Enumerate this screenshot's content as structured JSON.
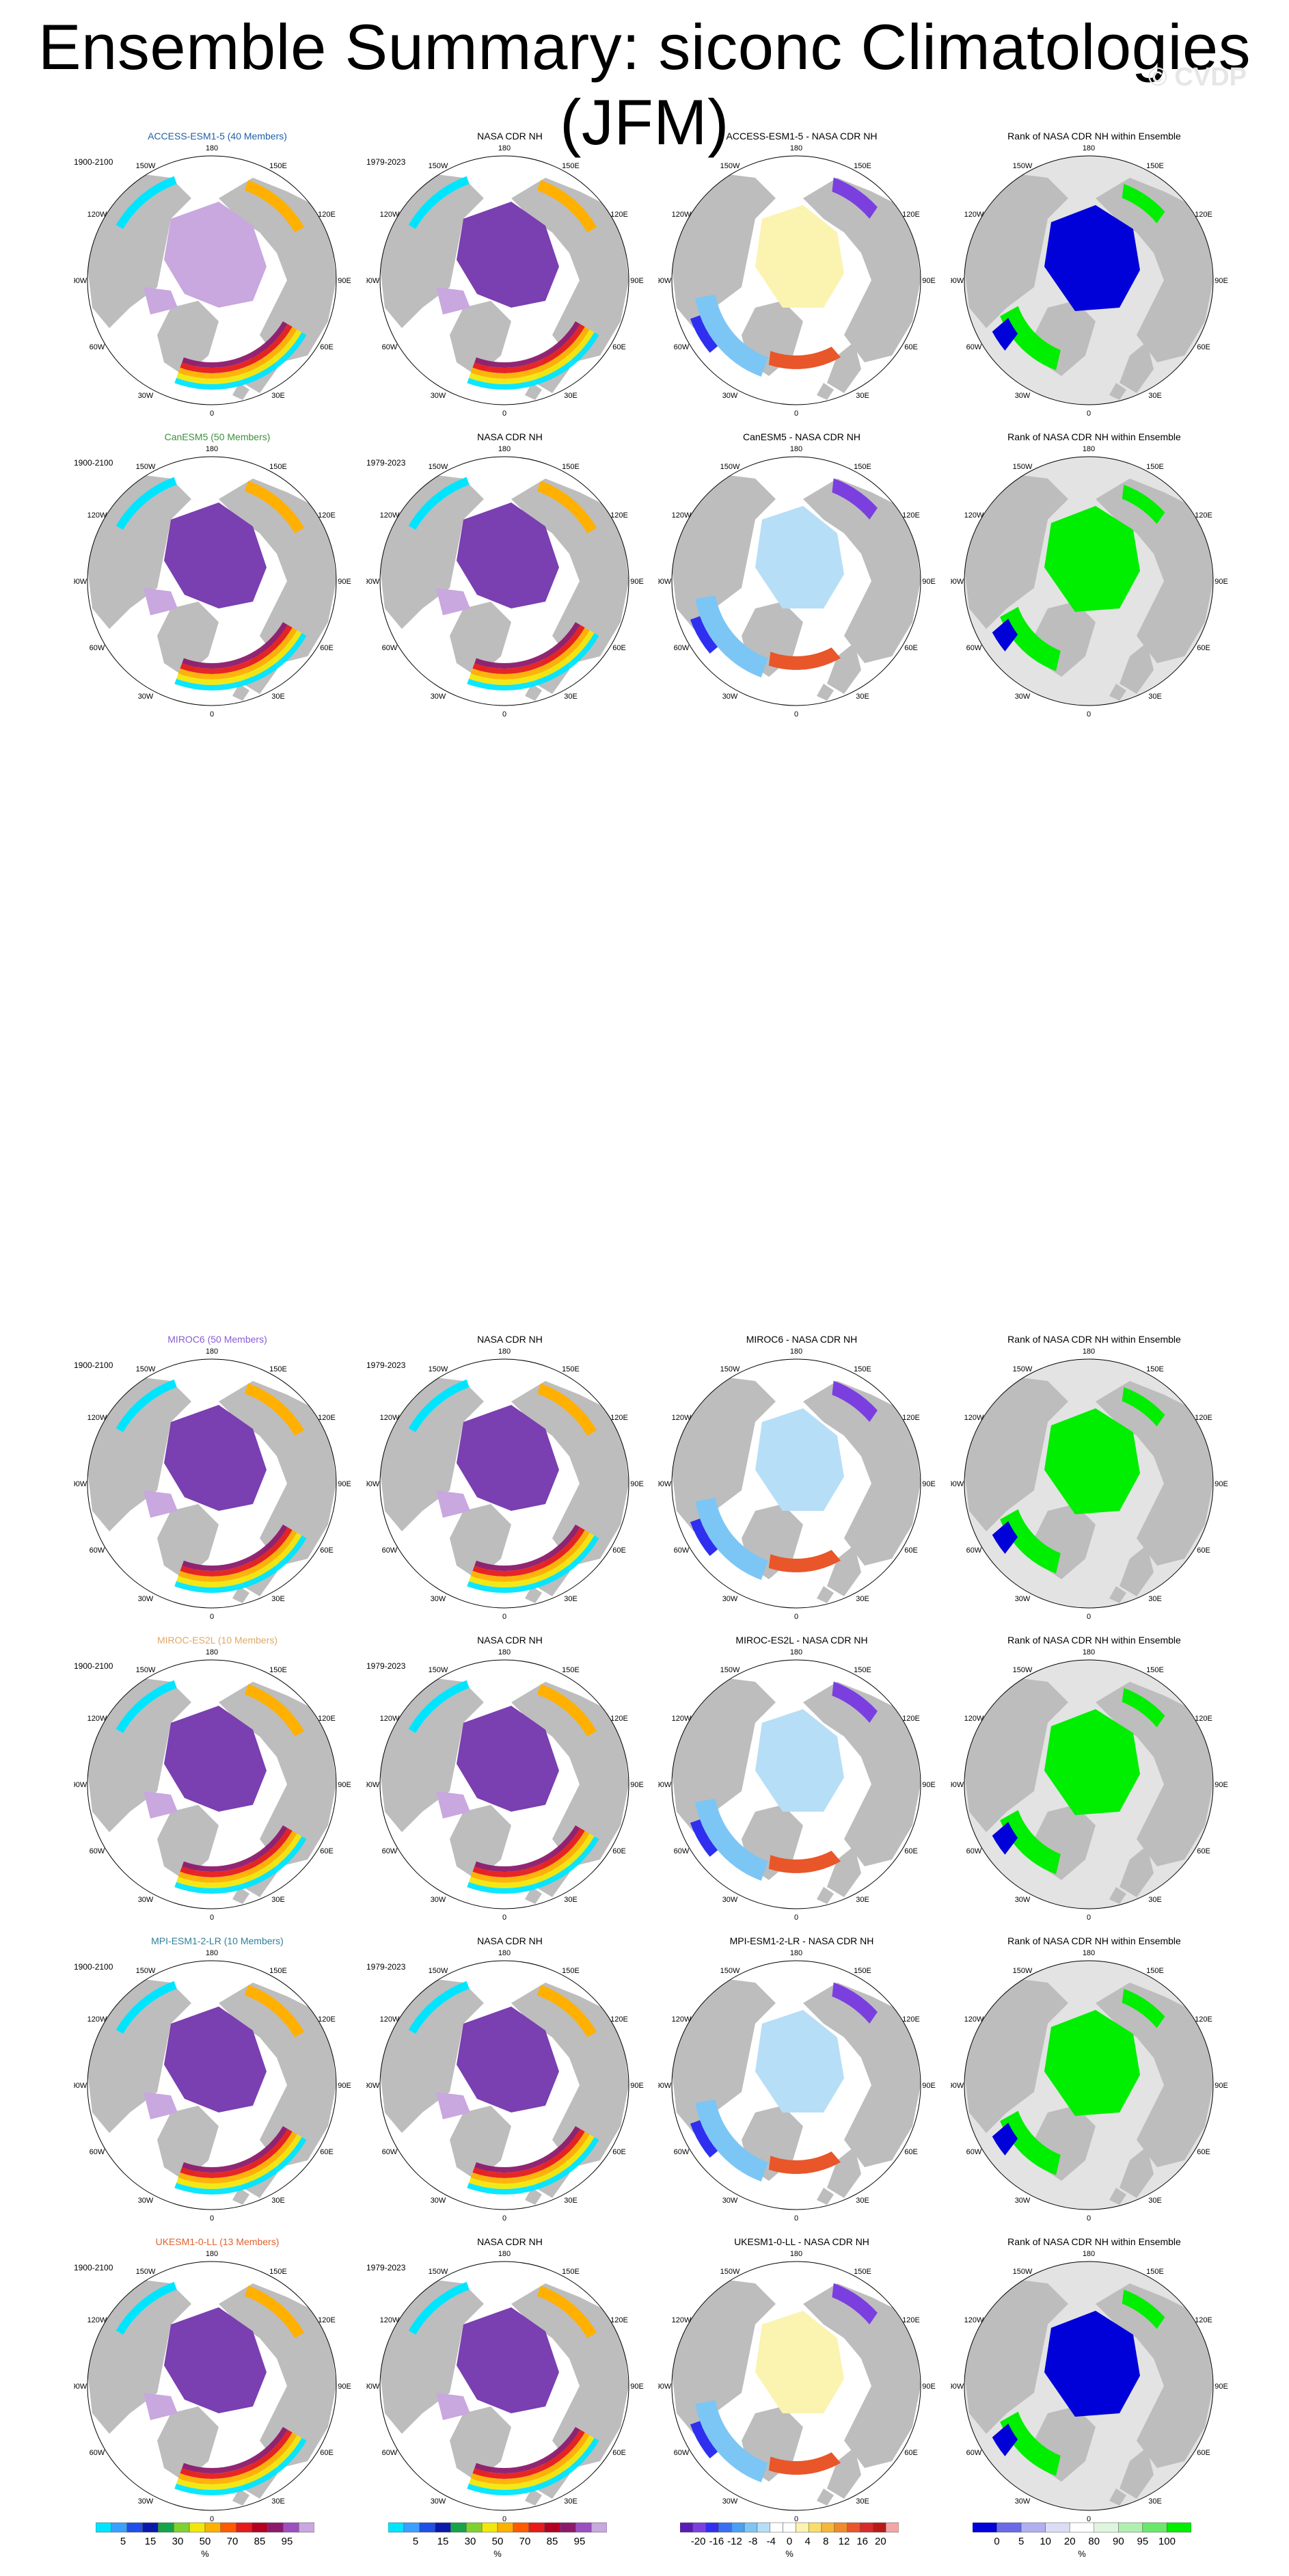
{
  "title": "Ensemble Summary: siconc Climatologies (JFM)",
  "watermark": "© CVDP",
  "colors": {
    "land": "#bdbdbd",
    "ice_purple": "#7a3fb0",
    "ice_lavender": "#c9a7df",
    "rank_green": "#00ee00",
    "rank_blue": "#0000d8",
    "rank_grey": "#e3e3e3"
  },
  "lon_labels": [
    "180",
    "150E",
    "120E",
    "90E",
    "60E",
    "30E",
    "0",
    "30W",
    "60W",
    "90W",
    "120W",
    "150W"
  ],
  "chart_data": [
    {
      "type": "heatmap",
      "row": 0,
      "col": 0,
      "kind": "model",
      "title": "ACCESS-ESM1-5 (40 Members)",
      "title_color": "#1f5fa8",
      "years": "1900-2100"
    },
    {
      "type": "heatmap",
      "row": 0,
      "col": 1,
      "kind": "obs",
      "title": "NASA CDR NH",
      "title_color": "#000000",
      "years": "1979-2023"
    },
    {
      "type": "heatmap",
      "row": 0,
      "col": 2,
      "kind": "diff",
      "title": "ACCESS-ESM1-5 - NASA CDR NH",
      "title_color": "#000000",
      "years": ""
    },
    {
      "type": "heatmap",
      "row": 0,
      "col": 3,
      "kind": "rank",
      "title": "Rank of NASA CDR NH within Ensemble",
      "title_color": "#000000",
      "years": ""
    },
    {
      "type": "heatmap",
      "row": 1,
      "col": 0,
      "kind": "model",
      "title": "CanESM5 (50 Members)",
      "title_color": "#3d8f3d",
      "years": "1900-2100"
    },
    {
      "type": "heatmap",
      "row": 1,
      "col": 1,
      "kind": "obs",
      "title": "NASA CDR NH",
      "title_color": "#000000",
      "years": "1979-2023"
    },
    {
      "type": "heatmap",
      "row": 1,
      "col": 2,
      "kind": "diff",
      "title": "CanESM5 - NASA CDR NH",
      "title_color": "#000000",
      "years": ""
    },
    {
      "type": "heatmap",
      "row": 1,
      "col": 3,
      "kind": "rank",
      "title": "Rank of NASA CDR NH within Ensemble",
      "title_color": "#000000",
      "years": ""
    },
    {
      "type": "heatmap",
      "row": 2,
      "col": 0,
      "kind": "model",
      "title": "MIROC6 (50 Members)",
      "title_color": "#8a5cd6",
      "years": "1900-2100"
    },
    {
      "type": "heatmap",
      "row": 2,
      "col": 1,
      "kind": "obs",
      "title": "NASA CDR NH",
      "title_color": "#000000",
      "years": "1979-2023"
    },
    {
      "type": "heatmap",
      "row": 2,
      "col": 2,
      "kind": "diff",
      "title": "MIROC6 - NASA CDR NH",
      "title_color": "#000000",
      "years": ""
    },
    {
      "type": "heatmap",
      "row": 2,
      "col": 3,
      "kind": "rank",
      "title": "Rank of NASA CDR NH within Ensemble",
      "title_color": "#000000",
      "years": ""
    },
    {
      "type": "heatmap",
      "row": 3,
      "col": 0,
      "kind": "model",
      "title": "MIROC-ES2L (10 Members)",
      "title_color": "#e0a868",
      "years": "1900-2100"
    },
    {
      "type": "heatmap",
      "row": 3,
      "col": 1,
      "kind": "obs",
      "title": "NASA CDR NH",
      "title_color": "#000000",
      "years": "1979-2023"
    },
    {
      "type": "heatmap",
      "row": 3,
      "col": 2,
      "kind": "diff",
      "title": "MIROC-ES2L - NASA CDR NH",
      "title_color": "#000000",
      "years": ""
    },
    {
      "type": "heatmap",
      "row": 3,
      "col": 3,
      "kind": "rank",
      "title": "Rank of NASA CDR NH within Ensemble",
      "title_color": "#000000",
      "years": ""
    },
    {
      "type": "heatmap",
      "row": 4,
      "col": 0,
      "kind": "model",
      "title": "MPI-ESM1-2-LR (10 Members)",
      "title_color": "#2e7f9a",
      "years": "1900-2100"
    },
    {
      "type": "heatmap",
      "row": 4,
      "col": 1,
      "kind": "obs",
      "title": "NASA CDR NH",
      "title_color": "#000000",
      "years": "1979-2023"
    },
    {
      "type": "heatmap",
      "row": 4,
      "col": 2,
      "kind": "diff",
      "title": "MPI-ESM1-2-LR - NASA CDR NH",
      "title_color": "#000000",
      "years": ""
    },
    {
      "type": "heatmap",
      "row": 4,
      "col": 3,
      "kind": "rank",
      "title": "Rank of NASA CDR NH within Ensemble",
      "title_color": "#000000",
      "years": ""
    },
    {
      "type": "heatmap",
      "row": 5,
      "col": 0,
      "kind": "model",
      "title": "UKESM1-0-LL (13 Members)",
      "title_color": "#e0622e",
      "years": "1900-2100"
    },
    {
      "type": "heatmap",
      "row": 5,
      "col": 1,
      "kind": "obs",
      "title": "NASA CDR NH",
      "title_color": "#000000",
      "years": "1979-2023"
    },
    {
      "type": "heatmap",
      "row": 5,
      "col": 2,
      "kind": "diff",
      "title": "UKESM1-0-LL - NASA CDR NH",
      "title_color": "#000000",
      "years": ""
    },
    {
      "type": "heatmap",
      "row": 5,
      "col": 3,
      "kind": "rank",
      "title": "Rank of NASA CDR NH within Ensemble",
      "title_color": "#000000",
      "years": ""
    }
  ],
  "colorbars": [
    {
      "id": "model",
      "unit": "%",
      "ticks": [
        "5",
        "15",
        "30",
        "50",
        "70",
        "85",
        "95"
      ],
      "colors": [
        "#00e5ff",
        "#3aa0ff",
        "#1f4fe6",
        "#0a1aa8",
        "#17a34a",
        "#7fd12e",
        "#f2e70a",
        "#ffb000",
        "#ff5a00",
        "#e61a1a",
        "#b30022",
        "#8c1a6b",
        "#9b4fc0",
        "#c9a7df"
      ]
    },
    {
      "id": "obs",
      "unit": "%",
      "ticks": [
        "5",
        "15",
        "30",
        "50",
        "70",
        "85",
        "95"
      ],
      "colors": [
        "#00e5ff",
        "#3aa0ff",
        "#1f4fe6",
        "#0a1aa8",
        "#17a34a",
        "#7fd12e",
        "#f2e70a",
        "#ffb000",
        "#ff5a00",
        "#e61a1a",
        "#b30022",
        "#8c1a6b",
        "#9b4fc0",
        "#c9a7df"
      ]
    },
    {
      "id": "diff",
      "unit": "%",
      "ticks": [
        "-20",
        "-16",
        "-12",
        "-8",
        "-4",
        "0",
        "4",
        "8",
        "12",
        "16",
        "20"
      ],
      "colors": [
        "#5a1ab8",
        "#7b3fe0",
        "#2f2ff0",
        "#3a6ff2",
        "#4aa0f0",
        "#7cc6f5",
        "#b6def7",
        "#ffffff",
        "#ffffff",
        "#fbf3b0",
        "#f8dd6a",
        "#f5b73a",
        "#f08a2a",
        "#e8562a",
        "#d92a2a",
        "#b81a1a",
        "#f3a6a6"
      ]
    },
    {
      "id": "rank",
      "unit": "%",
      "ticks": [
        "0",
        "5",
        "10",
        "20",
        "80",
        "90",
        "95",
        "100"
      ],
      "colors": [
        "#0000d8",
        "#6a6ae8",
        "#b0b0f0",
        "#dcdcf6",
        "#ffffff",
        "#e0f5e0",
        "#b0efb0",
        "#6ae86a",
        "#00ee00"
      ]
    }
  ]
}
